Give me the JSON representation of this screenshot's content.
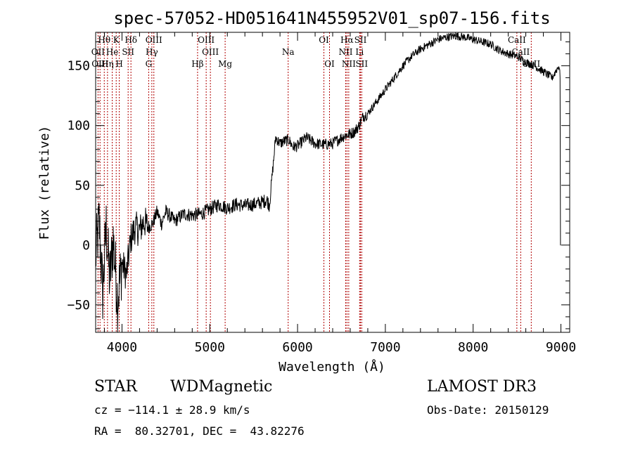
{
  "chart_data": {
    "type": "line",
    "title": "spec-57052-HD051641N455952V01_sp07-156.fits",
    "xlabel": "Wavelength (Å)",
    "ylabel": "Flux (relative)",
    "xlim": [
      3700,
      9100
    ],
    "ylim": [
      -73,
      178
    ],
    "xticks": [
      {
        "value": 4000,
        "label": "4000"
      },
      {
        "value": 5000,
        "label": "5000"
      },
      {
        "value": 6000,
        "label": "6000"
      },
      {
        "value": 7000,
        "label": "7000"
      },
      {
        "value": 8000,
        "label": "8000"
      },
      {
        "value": 9000,
        "label": "9000"
      }
    ],
    "yticks": [
      {
        "value": -50,
        "label": "−50"
      },
      {
        "value": 0,
        "label": "0"
      },
      {
        "value": 50,
        "label": "50"
      },
      {
        "value": 100,
        "label": "100"
      },
      {
        "value": 150,
        "label": "150"
      }
    ],
    "series": [
      {
        "name": "spectrum",
        "points": [
          [
            3700,
            -10
          ],
          [
            3740,
            20
          ],
          [
            3780,
            -40
          ],
          [
            3820,
            15
          ],
          [
            3860,
            -30
          ],
          [
            3900,
            5
          ],
          [
            3950,
            -45
          ],
          [
            4000,
            -15
          ],
          [
            4050,
            -25
          ],
          [
            4100,
            5
          ],
          [
            4150,
            15
          ],
          [
            4200,
            12
          ],
          [
            4250,
            20
          ],
          [
            4300,
            15
          ],
          [
            4350,
            18
          ],
          [
            4400,
            28
          ],
          [
            4450,
            18
          ],
          [
            4500,
            28
          ],
          [
            4600,
            20
          ],
          [
            4700,
            26
          ],
          [
            4800,
            25
          ],
          [
            4900,
            26
          ],
          [
            5000,
            30
          ],
          [
            5100,
            34
          ],
          [
            5200,
            31
          ],
          [
            5300,
            34
          ],
          [
            5400,
            33
          ],
          [
            5500,
            34
          ],
          [
            5600,
            36
          ],
          [
            5650,
            38
          ],
          [
            5680,
            33
          ],
          [
            5700,
            50
          ],
          [
            5720,
            65
          ],
          [
            5750,
            90
          ],
          [
            5800,
            85
          ],
          [
            5850,
            87
          ],
          [
            5900,
            88
          ],
          [
            5950,
            82
          ],
          [
            6000,
            83
          ],
          [
            6100,
            90
          ],
          [
            6200,
            85
          ],
          [
            6300,
            84
          ],
          [
            6400,
            85
          ],
          [
            6500,
            90
          ],
          [
            6550,
            92
          ],
          [
            6600,
            93
          ],
          [
            6650,
            95
          ],
          [
            6700,
            100
          ],
          [
            6750,
            108
          ],
          [
            6800,
            110
          ],
          [
            6850,
            115
          ],
          [
            6900,
            120
          ],
          [
            6950,
            125
          ],
          [
            7000,
            130
          ],
          [
            7100,
            140
          ],
          [
            7200,
            150
          ],
          [
            7300,
            158
          ],
          [
            7400,
            164
          ],
          [
            7500,
            168
          ],
          [
            7600,
            172
          ],
          [
            7700,
            174
          ],
          [
            7800,
            175
          ],
          [
            7900,
            174
          ],
          [
            8000,
            172
          ],
          [
            8100,
            170
          ],
          [
            8200,
            168
          ],
          [
            8300,
            163
          ],
          [
            8400,
            160
          ],
          [
            8500,
            158
          ],
          [
            8600,
            153
          ],
          [
            8700,
            150
          ],
          [
            8800,
            145
          ],
          [
            8900,
            140
          ],
          [
            8960,
            148
          ],
          [
            8980,
            150
          ],
          [
            8990,
            140
          ],
          [
            8995,
            0
          ],
          [
            9000,
            0
          ]
        ]
      }
    ],
    "line_markers": [
      {
        "label": "Hθ",
        "x": 3798,
        "row": 1
      },
      {
        "label": "OII",
        "x": 3727,
        "row": 2
      },
      {
        "label": "OIII",
        "x": 3750,
        "row": 3
      },
      {
        "label": "Hη",
        "x": 3835,
        "row": 3
      },
      {
        "label": "K",
        "x": 3934,
        "row": 1
      },
      {
        "label": "He",
        "x": 3889,
        "row": 2
      },
      {
        "label": "SII",
        "x": 4070,
        "row": 2
      },
      {
        "label": "H",
        "x": 3969,
        "row": 3
      },
      {
        "label": "Hδ",
        "x": 4102,
        "row": 1
      },
      {
        "label": "OIII",
        "x": 4363,
        "row": 1
      },
      {
        "label": "Hγ",
        "x": 4340,
        "row": 2
      },
      {
        "label": "G",
        "x": 4304,
        "row": 3
      },
      {
        "label": "OIII",
        "x": 4959,
        "row": 1
      },
      {
        "label": "OIII",
        "x": 5007,
        "row": 2
      },
      {
        "label": "Hβ",
        "x": 4861,
        "row": 3
      },
      {
        "label": "Mg",
        "x": 5175,
        "row": 3
      },
      {
        "label": "Na",
        "x": 5893,
        "row": 2
      },
      {
        "label": "OI",
        "x": 6300,
        "row": 1
      },
      {
        "label": "OI",
        "x": 6364,
        "row": 3
      },
      {
        "label": "Hα",
        "x": 6563,
        "row": 1
      },
      {
        "label": "NII",
        "x": 6548,
        "row": 2
      },
      {
        "label": "NII",
        "x": 6583,
        "row": 3
      },
      {
        "label": "SII",
        "x": 6717,
        "row": 1
      },
      {
        "label": "Li",
        "x": 6707,
        "row": 2
      },
      {
        "label": "SII",
        "x": 6731,
        "row": 3
      },
      {
        "label": "CaII",
        "x": 8498,
        "row": 1
      },
      {
        "label": "CaII",
        "x": 8542,
        "row": 2
      },
      {
        "label": "CaII",
        "x": 8662,
        "row": 3
      }
    ]
  },
  "info": {
    "class_label": "STAR",
    "subclass": "WDMagnetic",
    "survey": "LAMOST DR3",
    "cz": "cz = −114.1 ± 28.9 km/s",
    "obs_date": "Obs-Date: 20150129",
    "radec": "RA =  80.32701, DEC =  43.82276"
  },
  "colors": {
    "line_marker": "#b00000",
    "spectrum": "#000000"
  }
}
